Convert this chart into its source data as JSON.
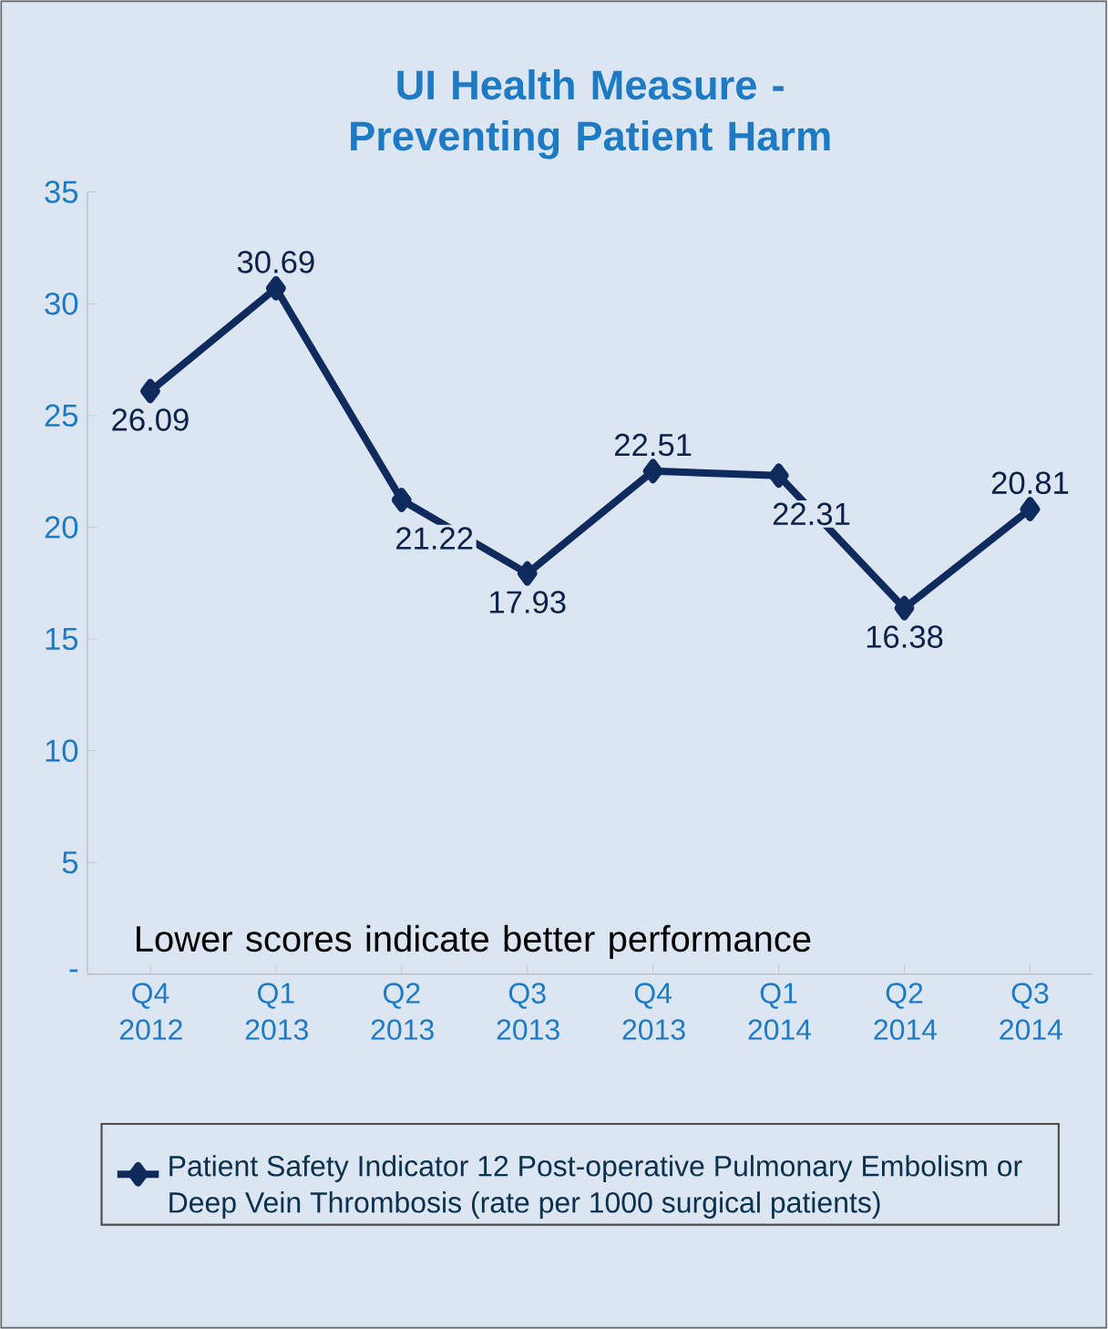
{
  "chart_data": {
    "type": "line",
    "title": "UI Health Measure - Preventing Patient Harm",
    "categories": [
      "Q4 2012",
      "Q1 2013",
      "Q2 2013",
      "Q3 2013",
      "Q4 2013",
      "Q1 2014",
      "Q2 2014",
      "Q3 2014"
    ],
    "series": [
      {
        "name": "Patient Safety Indicator 12 Post-operative Pulmonary Embolism or Deep Vein Thrombosis (rate per 1000 surgical patients)",
        "color": "#0f2a5c",
        "values": [
          26.09,
          30.69,
          21.22,
          17.93,
          22.51,
          22.31,
          16.38,
          20.81
        ]
      }
    ],
    "ylim": [
      0,
      35
    ],
    "yticks": [
      {
        "value": 0,
        "label": "-"
      },
      5,
      10,
      15,
      20,
      25,
      30,
      35
    ],
    "annotations": [
      "Lower scores indicate better performance"
    ],
    "data_labels": true,
    "marker": "diamond",
    "line_style": "solid",
    "legend": "bottom",
    "grid": false
  }
}
